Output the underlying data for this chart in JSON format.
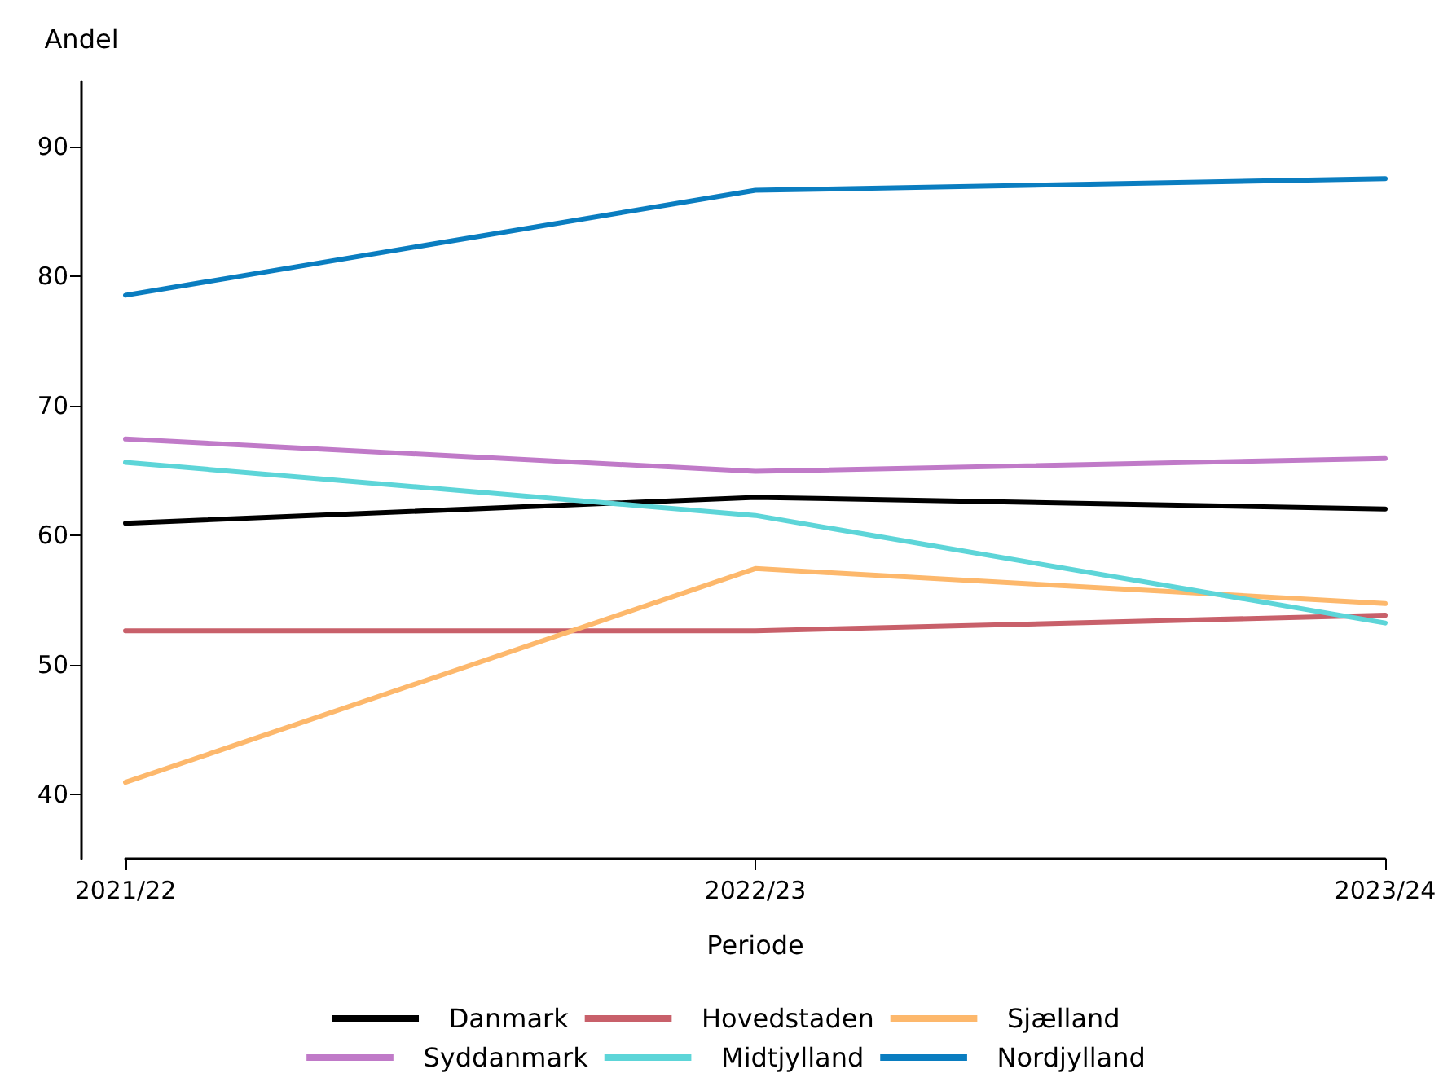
{
  "chart_data": {
    "type": "line",
    "xlabel": "Periode",
    "ylabel": "Andel",
    "categories": [
      "2021/22",
      "2022/23",
      "2023/24"
    ],
    "series": [
      {
        "name": "Danmark",
        "color": "#000000",
        "values": [
          60.9,
          62.9,
          62.0
        ]
      },
      {
        "name": "Hovedstaden",
        "color": "#c8606a",
        "values": [
          52.6,
          52.6,
          53.8
        ]
      },
      {
        "name": "Sjælland",
        "color": "#fdb86c",
        "values": [
          40.9,
          57.4,
          54.7
        ]
      },
      {
        "name": "Syddanmark",
        "color": "#c07ac8",
        "values": [
          67.4,
          64.9,
          65.9
        ]
      },
      {
        "name": "Midtjylland",
        "color": "#5dd5d8",
        "values": [
          65.6,
          61.5,
          53.2
        ]
      },
      {
        "name": "Nordjylland",
        "color": "#0a7dc0",
        "values": [
          78.5,
          86.6,
          87.5
        ]
      }
    ],
    "ylim": [
      35,
      95
    ],
    "yticks": [
      40,
      50,
      60,
      70,
      80,
      90
    ],
    "grid": false,
    "legend": "bottom",
    "marker": "none",
    "line_style": "solid"
  }
}
